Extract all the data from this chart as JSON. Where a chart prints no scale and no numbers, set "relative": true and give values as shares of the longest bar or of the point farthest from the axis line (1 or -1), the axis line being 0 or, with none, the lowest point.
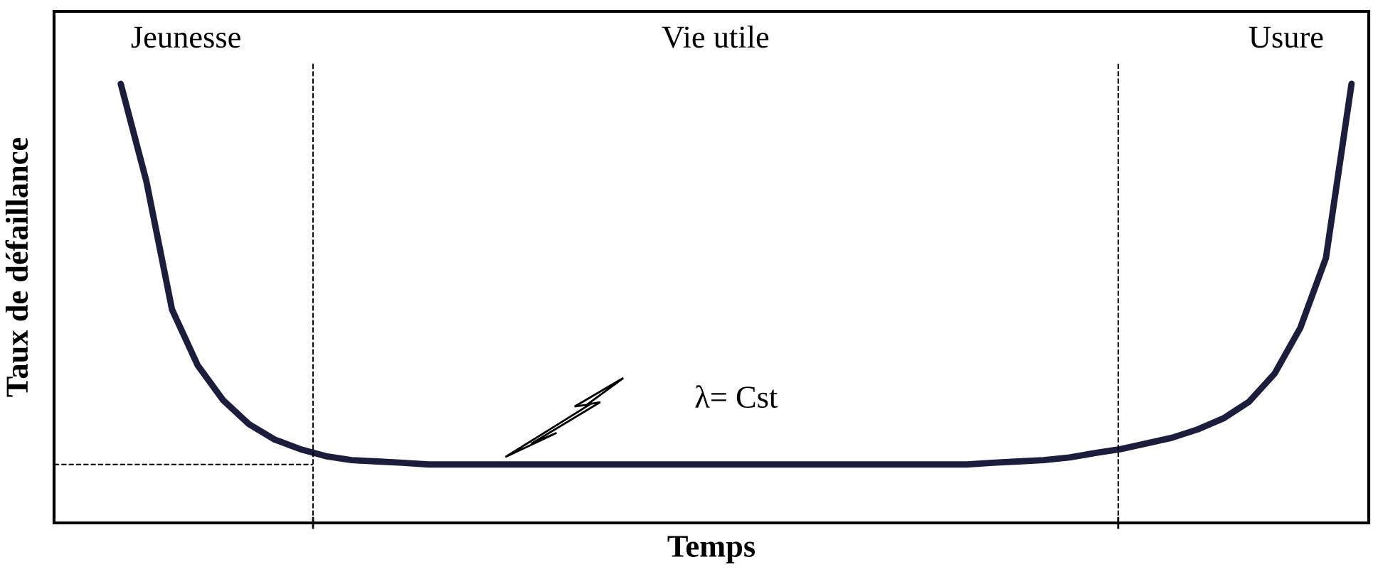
{
  "chart_data": {
    "type": "line",
    "relative": true,
    "xlabel": "Temps",
    "ylabel": "Taux de défaillance",
    "categories": [
      null,
      null,
      null,
      null,
      null,
      null,
      null,
      null,
      null,
      null,
      null,
      null,
      null,
      null,
      null,
      null,
      null,
      null,
      null,
      null,
      null,
      null,
      null,
      null,
      null,
      null,
      null,
      null,
      null,
      null,
      null,
      null,
      null,
      null,
      null,
      null,
      null,
      null,
      null,
      null,
      null,
      null,
      null,
      null,
      null,
      null,
      null,
      null,
      null
    ],
    "series": [
      {
        "color": "#1c1c3c",
        "values": [
          1.0,
          0.778,
          0.486,
          0.359,
          0.279,
          0.225,
          0.19,
          0.168,
          0.152,
          0.143,
          0.14,
          0.137,
          0.133,
          0.133,
          0.133,
          0.133,
          0.133,
          0.133,
          0.133,
          0.133,
          0.133,
          0.133,
          0.133,
          0.133,
          0.133,
          0.133,
          0.133,
          0.133,
          0.133,
          0.133,
          0.133,
          0.133,
          0.133,
          0.133,
          0.137,
          0.14,
          0.143,
          0.149,
          0.159,
          0.168,
          0.181,
          0.194,
          0.213,
          0.238,
          0.276,
          0.34,
          0.444,
          0.603,
          1.0
        ]
      }
    ],
    "ref_lines": [
      {
        "axis": "y",
        "value": 0.133,
        "line_style": "dashed",
        "color": "#000000"
      }
    ],
    "annotations": [
      "Jeunesse",
      "Vie utile",
      "Usure",
      "λ= Cst"
    ],
    "marker": "none",
    "line_style": "solid"
  }
}
